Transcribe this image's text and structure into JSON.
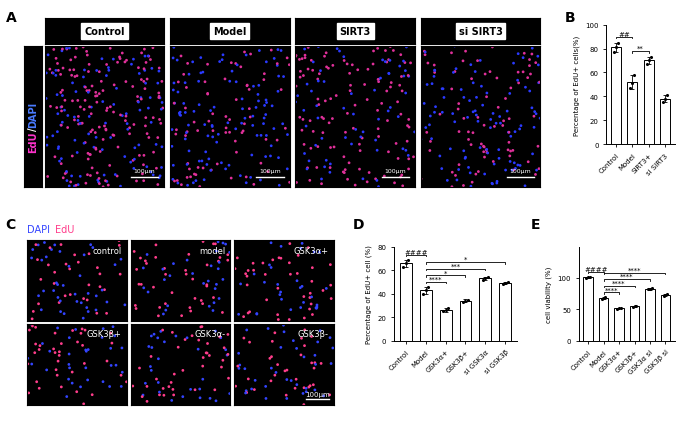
{
  "panel_a": {
    "label": "A",
    "channel_label": [
      {
        "text": "EdU",
        "color": "#ff33cc"
      },
      {
        "text": "/",
        "color": "#ffffff"
      },
      {
        "text": "DAPI",
        "color": "#4a7bff"
      }
    ],
    "conditions": [
      "Control",
      "Model",
      "SIRT3",
      "si SIRT3"
    ],
    "scale_bar": "100μm"
  },
  "panel_c": {
    "label": "C",
    "legend": [
      {
        "text": "DAPI",
        "color": "#3344ff"
      },
      {
        "text": "EdU",
        "color": "#ff3d8b"
      }
    ],
    "conditions": [
      "control",
      "model",
      "GSK3α+",
      "GSK3β+",
      "GSK3α-",
      "GSK3β-"
    ],
    "scale_bar": "100μm"
  },
  "chart_data": [
    {
      "panel": "B",
      "type": "bar",
      "y_label": "Percentage of EdU+ cells(%)",
      "categories": [
        "Control",
        "Model",
        "SIRT3+",
        "si SIRT3"
      ],
      "values": [
        81,
        52,
        70,
        38
      ],
      "errors": [
        4,
        6,
        3,
        3
      ],
      "points": [
        [
          77,
          81,
          85
        ],
        [
          47,
          51,
          58
        ],
        [
          67,
          70,
          73
        ],
        [
          35,
          38,
          41
        ]
      ],
      "color": "#ffffff",
      "marker": "circle",
      "ylim": [
        0,
        100
      ],
      "yticks": [
        0,
        20,
        40,
        60,
        80,
        100
      ],
      "comparisons": [
        {
          "from": "Control",
          "to": "Model",
          "label": "##"
        },
        {
          "from": "Model",
          "to": "SIRT3+",
          "label": "**"
        }
      ]
    },
    {
      "panel": "D",
      "type": "bar",
      "y_label": "Percentage of EdU+ cell (%)",
      "categories": [
        "Control",
        "Model",
        "GSK3α+",
        "GSK3β+",
        "si GSK3α",
        "si GSK3β"
      ],
      "values": [
        66,
        43,
        26,
        34,
        53,
        49
      ],
      "errors": [
        3,
        3,
        1.5,
        1.5,
        1,
        1
      ],
      "points": [
        [
          63,
          66,
          69
        ],
        [
          40,
          43,
          46
        ],
        [
          25,
          26,
          28
        ],
        [
          33,
          34,
          35
        ],
        [
          52,
          53,
          54
        ],
        [
          48,
          49,
          50
        ]
      ],
      "color": "#ffffff",
      "marker": "circle",
      "ylim": [
        0,
        80
      ],
      "yticks": [
        0,
        20,
        40,
        60,
        80
      ],
      "comparisons": [
        {
          "from": "Control",
          "to": "Model",
          "label": "####"
        },
        {
          "from": "Model",
          "to": "GSK3α+",
          "label": "****"
        },
        {
          "from": "Model",
          "to": "GSK3β+",
          "label": "*"
        },
        {
          "from": "Model",
          "to": "si GSK3α",
          "label": "***"
        },
        {
          "from": "Model",
          "to": "si GSK3β",
          "label": "*"
        }
      ]
    },
    {
      "panel": "E",
      "type": "bar",
      "y_label": "cell viability (%)",
      "categories": [
        "Control",
        "Model",
        "GSK3α+",
        "GSK3β+",
        "GSK3α si",
        "GSK3β si"
      ],
      "values": [
        101,
        68,
        52,
        55,
        83,
        73
      ],
      "errors": [
        1,
        1.5,
        0.5,
        0.5,
        1.5,
        2
      ],
      "points": [
        [
          100,
          101,
          101
        ],
        [
          67,
          68,
          69
        ],
        [
          51,
          52,
          52
        ],
        [
          54,
          55,
          55
        ],
        [
          82,
          83,
          84
        ],
        [
          72,
          73,
          74
        ]
      ],
      "color": "#ffffff",
      "marker": "circle",
      "ylim": [
        0,
        150
      ],
      "yticks": [
        0,
        50,
        100
      ],
      "comparisons": [
        {
          "from": "Control",
          "to": "Model",
          "label": "####"
        },
        {
          "from": "Model",
          "to": "GSK3α+",
          "label": "****"
        },
        {
          "from": "Model",
          "to": "GSK3β+",
          "label": "****"
        },
        {
          "from": "Model",
          "to": "GSK3α si",
          "label": "****"
        },
        {
          "from": "Model",
          "to": "GSK3β si",
          "label": "****"
        }
      ]
    }
  ]
}
